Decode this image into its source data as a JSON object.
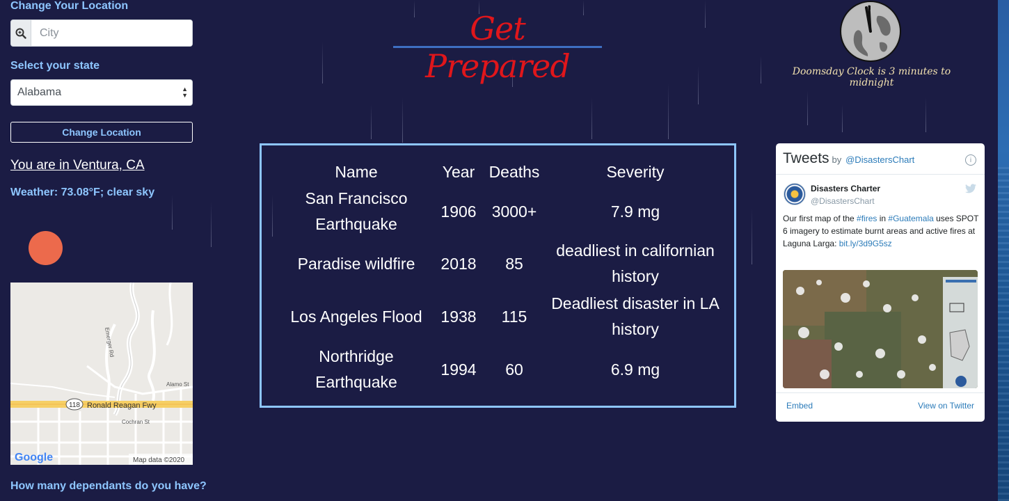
{
  "sidebar": {
    "change_location_heading": "Change Your Location",
    "city_placeholder": "City",
    "state_label": "Select your state",
    "state_selected": "Alabama",
    "change_button": "Change Location",
    "location_text": "You are in Ventura, CA",
    "weather_text": "Weather: 73.08°F; clear sky",
    "dependants_question": "How many dependants do you have?"
  },
  "map": {
    "road_emerger": "Emerger Rd",
    "street_alamo": "Alamo St",
    "route_shield": "118",
    "freeway": "Ronald Reagan Fwy",
    "street_cochran": "Cochran St",
    "google_logo": "Google",
    "map_data": "Map data ©2020"
  },
  "header": {
    "title": "Get Prepared",
    "clock_caption": "Doomsday Clock is 3 minutes to midnight"
  },
  "table": {
    "headers": [
      "Name",
      "Year",
      "Deaths",
      "Severity"
    ],
    "rows": [
      {
        "name_line1": "San Francisco",
        "name_line2": "Earthquake",
        "year": "1906",
        "deaths": "3000+",
        "severity_line1": "7.9 mg",
        "severity_line2": ""
      },
      {
        "name_line1": "Paradise wildfire",
        "name_line2": "",
        "year": "2018",
        "deaths": "85",
        "severity_line1": "deadliest in californian",
        "severity_line2": "history"
      },
      {
        "name_line1": "Los Angeles Flood",
        "name_line2": "",
        "year": "1938",
        "deaths": "115",
        "severity_line1": "Deadliest disaster in LA",
        "severity_line2": "history"
      },
      {
        "name_line1": "Northridge",
        "name_line2": "Earthquake",
        "year": "1994",
        "deaths": "60",
        "severity_line1": "6.9 mg",
        "severity_line2": ""
      }
    ]
  },
  "tweets": {
    "title": "Tweets",
    "by": "by",
    "handle": "@DisastersChart",
    "author_name": "Disasters Charter",
    "author_handle": "@DisastersChart",
    "text_1": "Our first map of the ",
    "hashtag_fires": "#fires",
    "text_2": " in ",
    "hashtag_guatemala": "#Guatemala",
    "text_3": " uses SPOT 6 imagery to estimate burnt areas and active fires at Laguna Larga: ",
    "link": "bit.ly/3d9G5sz",
    "embed": "Embed",
    "view_on_twitter": "View on Twitter"
  },
  "colors": {
    "background": "#1b1c44",
    "accent_blue": "#8ec6ff",
    "title_red": "#e0161b",
    "sun_orange": "#ec6a4c"
  }
}
